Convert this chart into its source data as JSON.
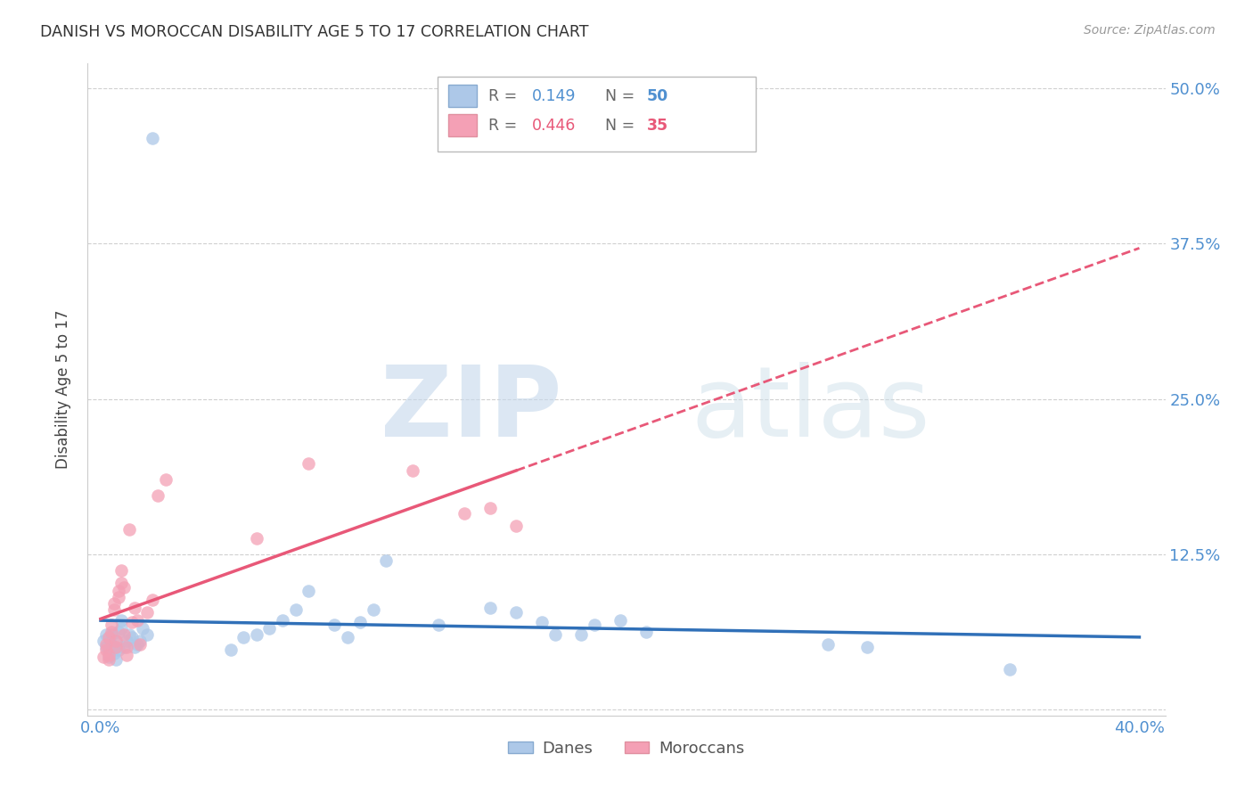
{
  "title": "DANISH VS MOROCCAN DISABILITY AGE 5 TO 17 CORRELATION CHART",
  "source": "Source: ZipAtlas.com",
  "ylabel": "Disability Age 5 to 17",
  "xlim": [
    -0.005,
    0.41
  ],
  "ylim": [
    -0.005,
    0.52
  ],
  "danes_R": 0.149,
  "danes_N": 50,
  "moroccans_R": 0.446,
  "moroccans_N": 35,
  "danes_color": "#adc8e8",
  "moroccans_color": "#f4a0b5",
  "danes_line_color": "#3070b8",
  "moroccans_line_color": "#e85878",
  "danes_x": [
    0.001,
    0.002,
    0.002,
    0.003,
    0.003,
    0.003,
    0.004,
    0.004,
    0.005,
    0.005,
    0.006,
    0.006,
    0.007,
    0.007,
    0.008,
    0.008,
    0.009,
    0.01,
    0.011,
    0.012,
    0.013,
    0.014,
    0.015,
    0.016,
    0.018,
    0.02,
    0.05,
    0.055,
    0.06,
    0.065,
    0.07,
    0.075,
    0.08,
    0.09,
    0.095,
    0.1,
    0.105,
    0.11,
    0.13,
    0.15,
    0.16,
    0.17,
    0.175,
    0.185,
    0.19,
    0.2,
    0.21,
    0.28,
    0.295,
    0.35
  ],
  "danes_y": [
    0.055,
    0.05,
    0.06,
    0.048,
    0.042,
    0.058,
    0.052,
    0.06,
    0.045,
    0.05,
    0.04,
    0.055,
    0.048,
    0.062,
    0.072,
    0.065,
    0.05,
    0.055,
    0.06,
    0.058,
    0.05,
    0.052,
    0.055,
    0.065,
    0.06,
    0.46,
    0.048,
    0.058,
    0.06,
    0.065,
    0.072,
    0.08,
    0.095,
    0.068,
    0.058,
    0.07,
    0.08,
    0.12,
    0.068,
    0.082,
    0.078,
    0.07,
    0.06,
    0.06,
    0.068,
    0.072,
    0.062,
    0.052,
    0.05,
    0.032
  ],
  "moroccans_x": [
    0.001,
    0.002,
    0.002,
    0.003,
    0.003,
    0.003,
    0.004,
    0.004,
    0.005,
    0.005,
    0.006,
    0.006,
    0.007,
    0.007,
    0.008,
    0.008,
    0.009,
    0.009,
    0.01,
    0.01,
    0.011,
    0.012,
    0.013,
    0.014,
    0.015,
    0.018,
    0.02,
    0.022,
    0.025,
    0.06,
    0.08,
    0.12,
    0.14,
    0.15,
    0.16
  ],
  "moroccans_y": [
    0.042,
    0.048,
    0.052,
    0.04,
    0.044,
    0.058,
    0.062,
    0.068,
    0.08,
    0.085,
    0.05,
    0.055,
    0.09,
    0.095,
    0.102,
    0.112,
    0.098,
    0.06,
    0.044,
    0.05,
    0.145,
    0.07,
    0.082,
    0.072,
    0.052,
    0.078,
    0.088,
    0.172,
    0.185,
    0.138,
    0.198,
    0.192,
    0.158,
    0.162,
    0.148
  ],
  "watermark_zip": "ZIP",
  "watermark_atlas": "atlas",
  "background_color": "#ffffff",
  "grid_color": "#d0d0d0",
  "ytick_positions": [
    0.0,
    0.125,
    0.25,
    0.375,
    0.5
  ],
  "ytick_labels": [
    "",
    "12.5%",
    "25.0%",
    "37.5%",
    "50.0%"
  ],
  "xtick_positions": [
    0.0,
    0.1,
    0.2,
    0.3,
    0.4
  ],
  "xtick_labels": [
    "0.0%",
    "",
    "",
    "",
    "40.0%"
  ],
  "tick_color": "#5090d0",
  "legend_box_color": "#cccccc",
  "danes_label": "Danes",
  "moroccans_label": "Moroccans"
}
